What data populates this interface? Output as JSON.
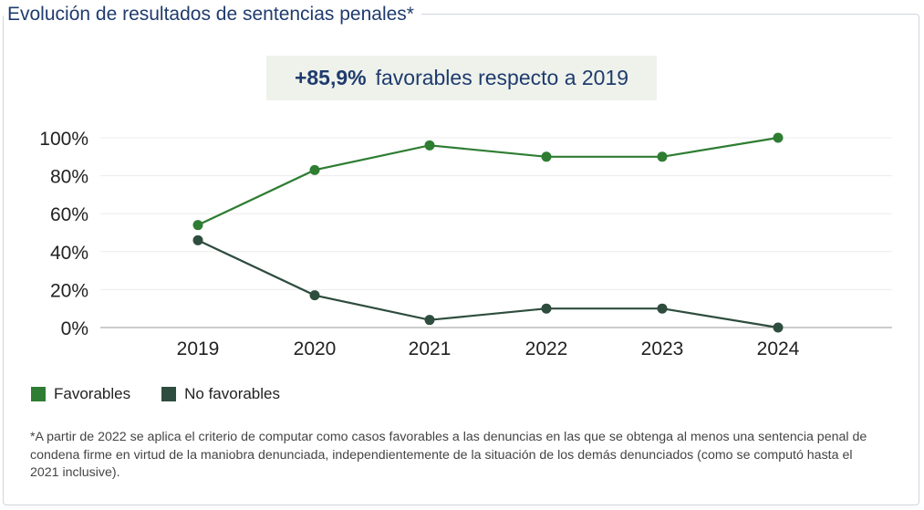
{
  "title": "Evolución de resultados de sentencias penales*",
  "highlight": {
    "value": "+85,9%",
    "text": "favorables respecto a 2019"
  },
  "legend": [
    {
      "label": "Favorables",
      "color": "#2e7d32"
    },
    {
      "label": "No favorables",
      "color": "#2e4d3e"
    }
  ],
  "footnote": "*A partir de 2022 se aplica el criterio de computar como casos favorables a las denuncias en las que se obtenga al menos una sentencia penal de condena firme en virtud de la maniobra denunciada, independientemente de la situación de los demás denunciados (como se computó hasta el 2021 inclusive).",
  "chart_data": {
    "type": "line",
    "title": "Evolución de resultados de sentencias penales*",
    "categories": [
      "2019",
      "2020",
      "2021",
      "2022",
      "2023",
      "2024"
    ],
    "series": [
      {
        "name": "Favorables",
        "values": [
          54,
          83,
          96,
          90,
          90,
          100
        ],
        "color": "#2e7d32"
      },
      {
        "name": "No favorables",
        "values": [
          46,
          17,
          4,
          10,
          10,
          0
        ],
        "color": "#2e4d3e"
      }
    ],
    "ylim": [
      0,
      100
    ],
    "yticks": [
      0,
      20,
      40,
      60,
      80,
      100
    ],
    "ytick_labels": [
      "0%",
      "20%",
      "40%",
      "60%",
      "80%",
      "100%"
    ],
    "xlabel": "",
    "ylabel": "",
    "grid": true,
    "legend_position": "bottom-left"
  }
}
